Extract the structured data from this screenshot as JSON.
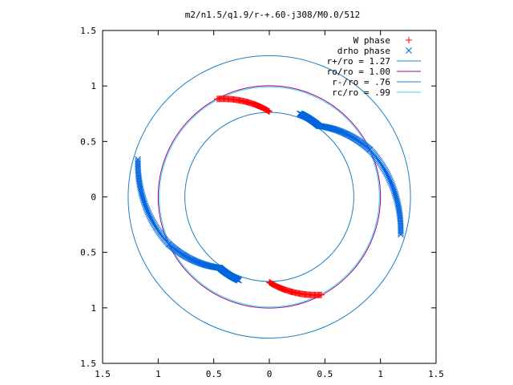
{
  "chart_data": {
    "type": "scatter",
    "title": "m2/n1.5/q1.9/r-+.60-j308/M0.0/512",
    "xlim": [
      -1.5,
      1.5
    ],
    "ylim": [
      -1.5,
      1.5
    ],
    "xticks": [
      -1.5,
      -1,
      -0.5,
      0,
      0.5,
      1,
      1.5
    ],
    "yticks": [
      -1.5,
      -1,
      -0.5,
      0,
      0.5,
      1,
      1.5
    ],
    "xtick_labels": [
      "1.5",
      "1",
      "0.5",
      "0",
      "0.5",
      "1",
      "1.5"
    ],
    "ytick_labels": [
      "1.5",
      "1",
      "0.5",
      "0",
      "0.5",
      "1",
      "1.5"
    ],
    "grid": false,
    "legend_position": "top-right",
    "series": [
      {
        "name": "W phase",
        "kind": "points",
        "marker": "plus",
        "color": "#ff0000",
        "arcs": [
          {
            "r_start": 1.0,
            "theta_start": 118,
            "r_end": 0.77,
            "theta_end": 90
          },
          {
            "r_start": 0.77,
            "theta_start": 270,
            "r_end": 1.0,
            "theta_end": 298
          }
        ]
      },
      {
        "name": "drho phase",
        "kind": "points",
        "marker": "cross",
        "color": "#0066dd",
        "arcs": [
          {
            "r_start": 0.8,
            "theta_start": 70,
            "r_end": 0.78,
            "theta_end": 55
          },
          {
            "r_start": 0.78,
            "theta_start": 55,
            "r_end": 1.0,
            "theta_end": 25
          },
          {
            "r_start": 1.0,
            "theta_start": 25,
            "r_end": 1.23,
            "theta_end": -16
          },
          {
            "r_start": 0.8,
            "theta_start": 250,
            "r_end": 0.78,
            "theta_end": 235
          },
          {
            "r_start": 0.78,
            "theta_start": 235,
            "r_end": 1.0,
            "theta_end": 205
          },
          {
            "r_start": 1.0,
            "theta_start": 205,
            "r_end": 1.23,
            "theta_end": 164
          }
        ]
      },
      {
        "name": "r+/ro = 1.27",
        "kind": "circle",
        "radius": 1.27,
        "color": "#1a80c8"
      },
      {
        "name": "ro/ro = 1.00",
        "kind": "circle",
        "radius": 1.0,
        "color": "#a000a0"
      },
      {
        "name": "r-/ro = .76",
        "kind": "circle",
        "radius": 0.76,
        "color": "#1a80c8"
      },
      {
        "name": "rc/ro = .99",
        "kind": "circle",
        "radius": 0.99,
        "color": "#40d8d8"
      }
    ]
  }
}
